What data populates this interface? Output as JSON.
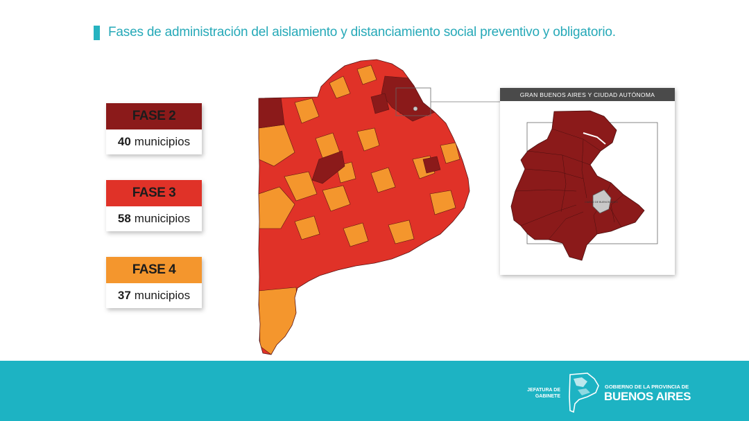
{
  "title": "Fases de administración del aislamiento y distanciamiento social preventivo y obligatorio.",
  "colors": {
    "accent": "#26b3c0",
    "fase2": "#8b1a1a",
    "fase3": "#e03228",
    "fase4": "#f4962d",
    "caba": "#c8c8c8",
    "footer": "#1db3c3"
  },
  "legend": [
    {
      "phase": "FASE 2",
      "count": "40",
      "unit": "municipios"
    },
    {
      "phase": "FASE 3",
      "count": "58",
      "unit": "municipios"
    },
    {
      "phase": "FASE 4",
      "count": "37",
      "unit": "municipios"
    }
  ],
  "inset": {
    "header": "GRAN BUENOS AIRES Y CIUDAD AUTÓNOMA",
    "caba_label": "CIUDAD DE BUENOS AIRES"
  },
  "footer": {
    "jefatura_line1": "JEFATURA DE",
    "jefatura_line2": "GABINETE",
    "gobierno": "GOBIERNO DE LA PROVINCIA DE",
    "province": "BUENOS AIRES",
    "emblem_icon": "province-map-emblem-icon"
  }
}
